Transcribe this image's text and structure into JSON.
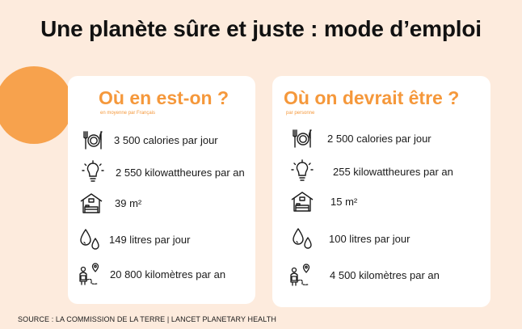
{
  "title": "Une planète sûre et juste : mode d’emploi",
  "accent_color": "#f5983b",
  "background_color": "#fdebdd",
  "left_card": {
    "heading": "Où en est-on ?",
    "subheading": "en moyenne par Français",
    "items": [
      {
        "icon": "plate-icon",
        "value": "3 500 calories par jour"
      },
      {
        "icon": "lightbulb-icon",
        "value": "2 550 kilowattheures par an"
      },
      {
        "icon": "house-icon",
        "value": "39 m²"
      },
      {
        "icon": "water-drops-icon",
        "value": "149 litres par jour"
      },
      {
        "icon": "travel-icon",
        "value": "20 800 kilomètres par an"
      }
    ]
  },
  "right_card": {
    "heading": "Où on devrait être ?",
    "subheading": "par personne",
    "items": [
      {
        "icon": "plate-icon",
        "value": "2 500 calories par jour"
      },
      {
        "icon": "lightbulb-icon",
        "value": "255 kilowattheures par an"
      },
      {
        "icon": "house-icon",
        "value": "15 m²"
      },
      {
        "icon": "water-drops-icon",
        "value": "100 litres par jour"
      },
      {
        "icon": "travel-icon",
        "value": "4 500 kilomètres par an"
      }
    ]
  },
  "source": "SOURCE : LA COMMISSION DE LA TERRE | LANCET PLANETARY HEALTH"
}
